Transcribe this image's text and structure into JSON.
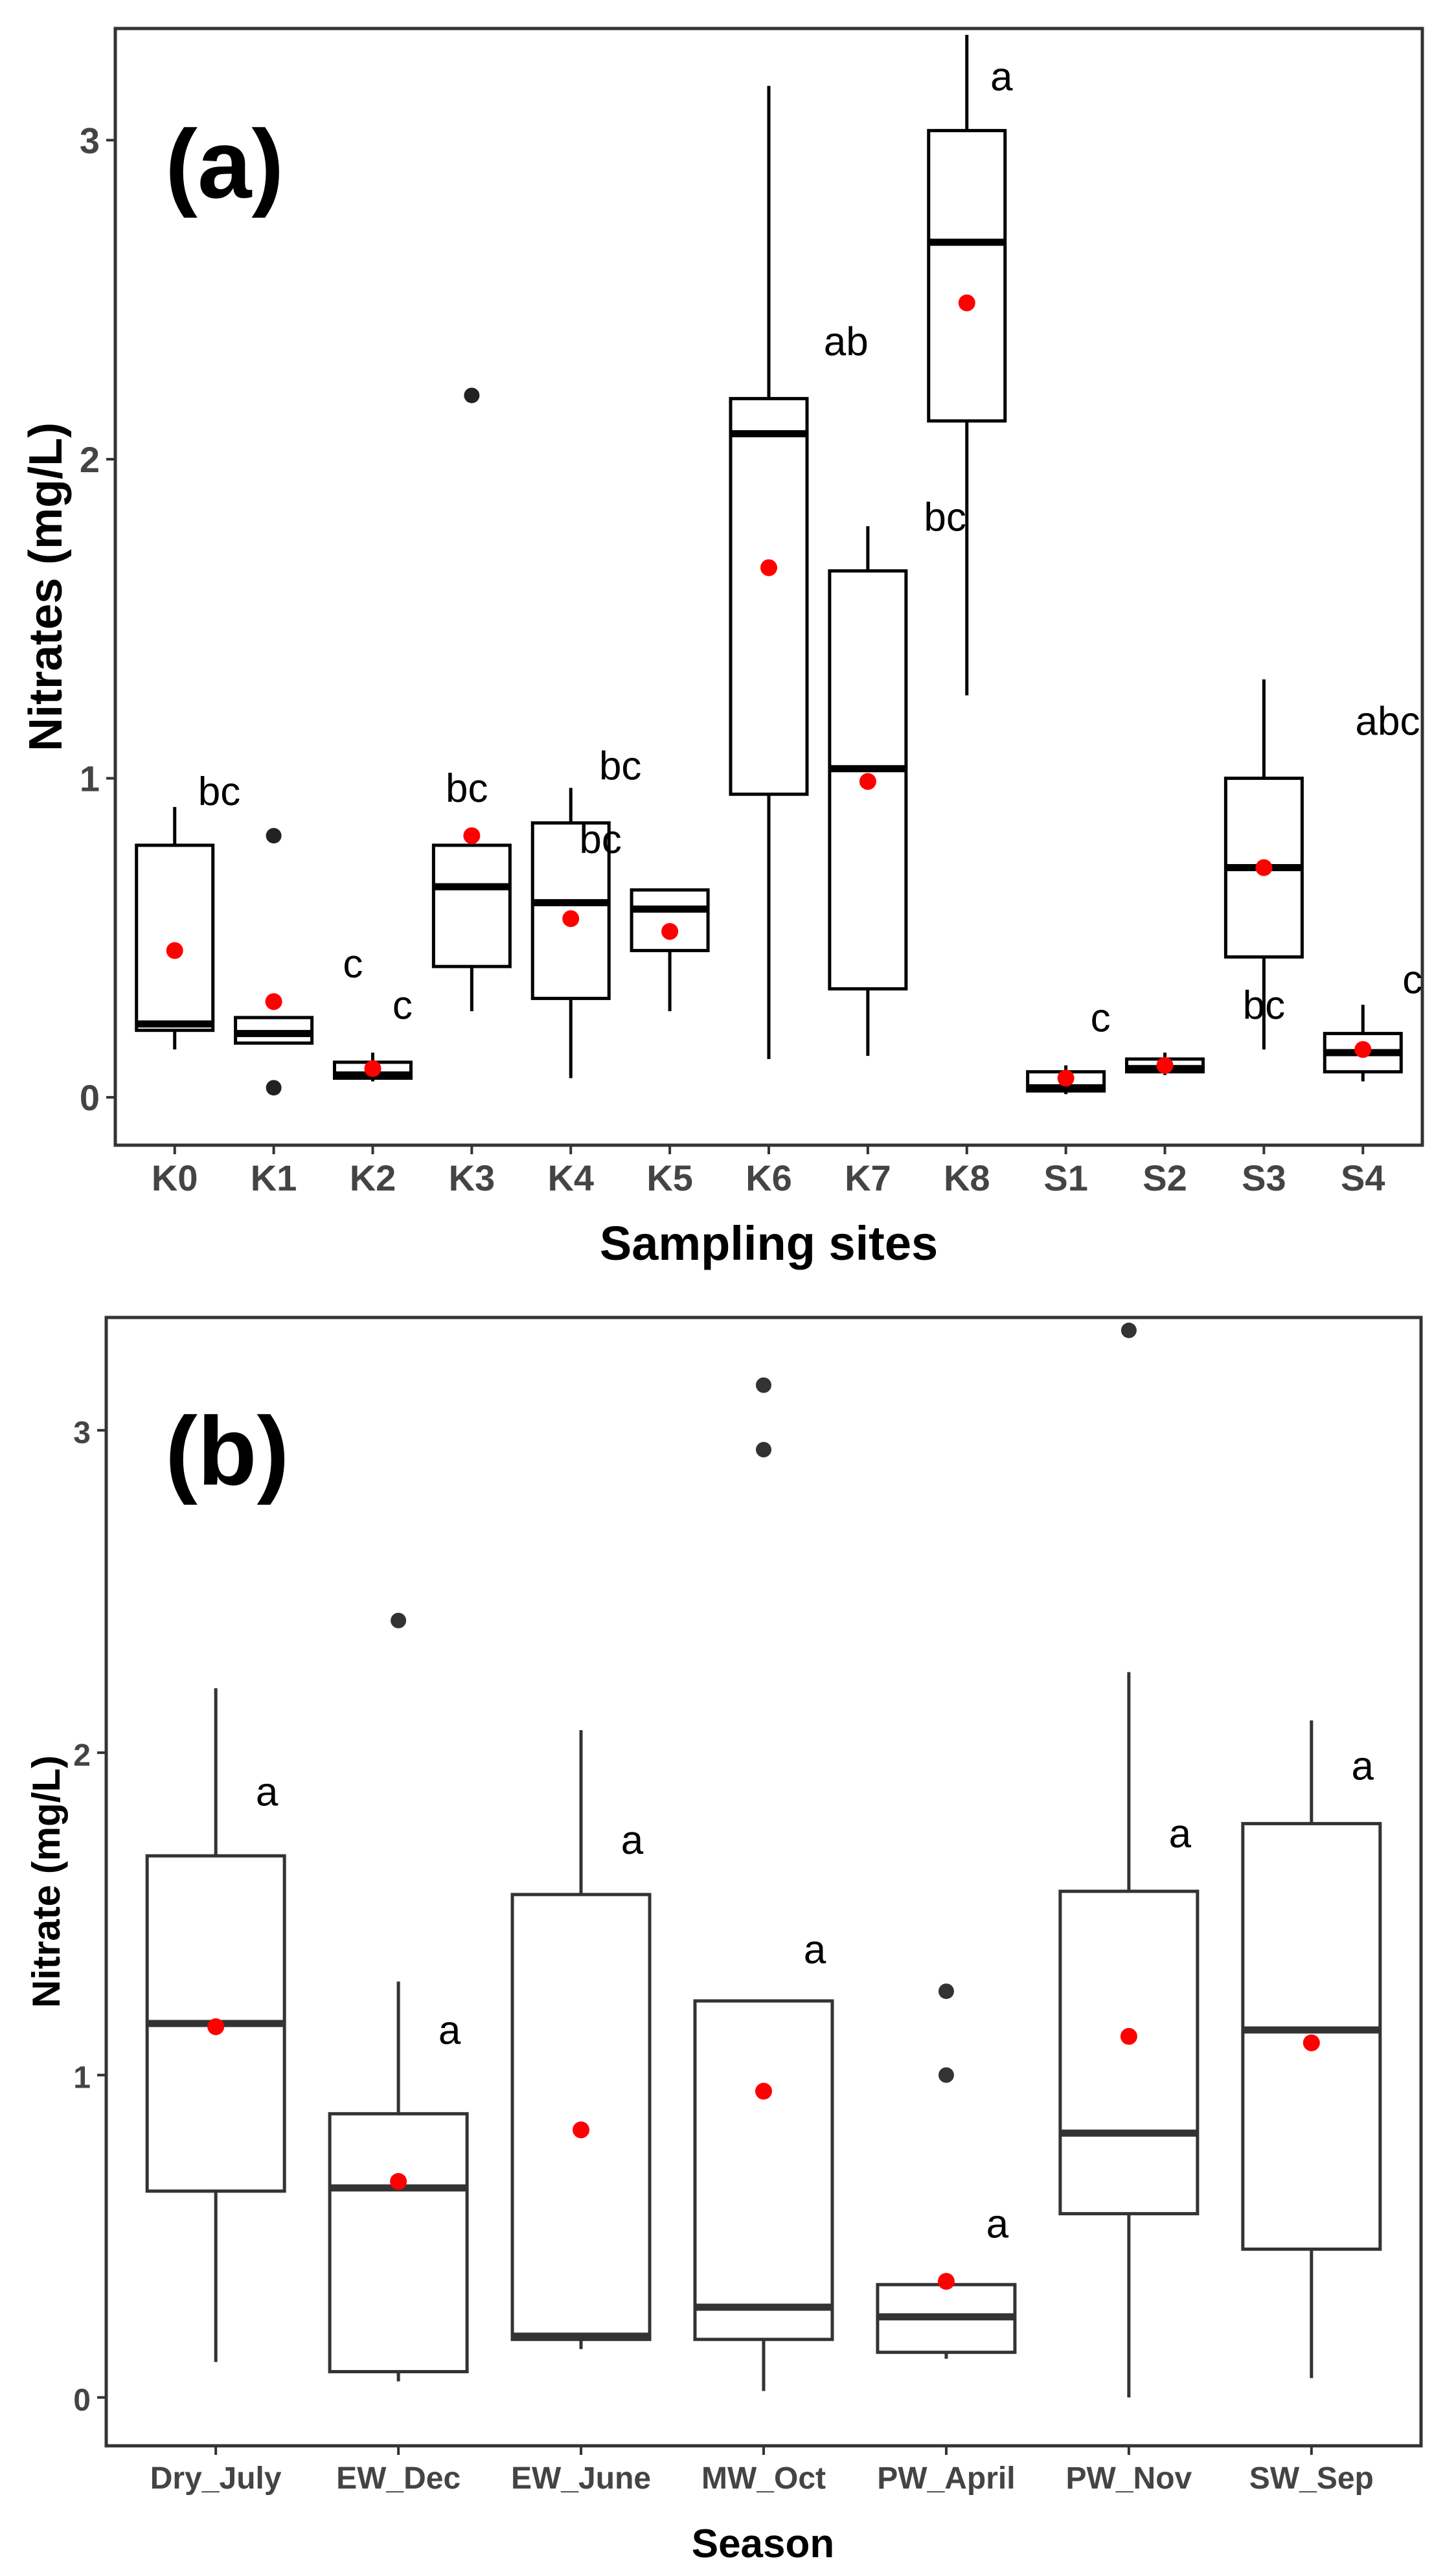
{
  "chart_data": [
    {
      "type": "box",
      "panel_label": "(a)",
      "xlabel": "Sampling sites",
      "ylabel": "Nitrates (mg/L)",
      "ylim": [
        -0.15,
        3.35
      ],
      "yticks": [
        "0",
        "1",
        "2",
        "3"
      ],
      "ytick_values": [
        0,
        1,
        2,
        3
      ],
      "colors": {
        "box": "#000000",
        "mean": "#ff0000",
        "outlier": "#222222"
      },
      "categories": [
        "K0",
        "K1",
        "K2",
        "K3",
        "K4",
        "K5",
        "K6",
        "K7",
        "K8",
        "S1",
        "S2",
        "S3",
        "S4"
      ],
      "boxes": [
        {
          "q1": 0.21,
          "median": 0.23,
          "q3": 0.79,
          "whisker_low": 0.15,
          "whisker_high": 0.91,
          "mean": 0.46,
          "outliers": [],
          "letter": "bc",
          "letter_pos": [
            0.45,
            0.96
          ]
        },
        {
          "q1": 0.17,
          "median": 0.2,
          "q3": 0.25,
          "whisker_low": 0.17,
          "whisker_high": 0.25,
          "mean": 0.3,
          "outliers": [
            0.82,
            0.03
          ],
          "letter": "c",
          "letter_pos": [
            0.8,
            0.42
          ]
        },
        {
          "q1": 0.06,
          "median": 0.07,
          "q3": 0.11,
          "whisker_low": 0.05,
          "whisker_high": 0.14,
          "mean": 0.09,
          "outliers": [],
          "letter": "c",
          "letter_pos": [
            0.3,
            0.29
          ]
        },
        {
          "q1": 0.41,
          "median": 0.66,
          "q3": 0.79,
          "whisker_low": 0.27,
          "whisker_high": 0.79,
          "mean": 0.82,
          "outliers": [
            2.2
          ],
          "letter": "bc",
          "letter_pos": [
            -0.05,
            0.97
          ]
        },
        {
          "q1": 0.31,
          "median": 0.61,
          "q3": 0.86,
          "whisker_low": 0.06,
          "whisker_high": 0.97,
          "mean": 0.56,
          "outliers": [],
          "letter": "bc",
          "letter_pos": [
            0.5,
            1.04
          ]
        },
        {
          "q1": 0.46,
          "median": 0.59,
          "q3": 0.65,
          "whisker_low": 0.27,
          "whisker_high": 0.65,
          "mean": 0.52,
          "outliers": [],
          "letter": "bc",
          "letter_pos": [
            -0.7,
            0.81
          ]
        },
        {
          "q1": 0.95,
          "median": 2.08,
          "q3": 2.19,
          "whisker_low": 0.12,
          "whisker_high": 3.17,
          "mean": 1.66,
          "outliers": [],
          "letter": "ab",
          "letter_pos": [
            0.78,
            2.37
          ]
        },
        {
          "q1": 0.34,
          "median": 1.03,
          "q3": 1.65,
          "whisker_low": 0.13,
          "whisker_high": 1.79,
          "mean": 0.99,
          "outliers": [],
          "letter": "bc",
          "letter_pos": [
            0.78,
            1.82
          ]
        },
        {
          "q1": 2.12,
          "median": 2.68,
          "q3": 3.03,
          "whisker_low": 1.26,
          "whisker_high": 3.33,
          "mean": 2.49,
          "outliers": [],
          "letter": "a",
          "letter_pos": [
            0.35,
            3.2
          ]
        },
        {
          "q1": 0.02,
          "median": 0.03,
          "q3": 0.08,
          "whisker_low": 0.01,
          "whisker_high": 0.1,
          "mean": 0.06,
          "outliers": [],
          "letter": "c",
          "letter_pos": [
            0.35,
            0.25
          ]
        },
        {
          "q1": 0.08,
          "median": 0.09,
          "q3": 0.12,
          "whisker_low": 0.07,
          "whisker_high": 0.14,
          "mean": 0.1,
          "outliers": [],
          "letter": "bc",
          "letter_pos": [
            1.0,
            0.29
          ]
        },
        {
          "q1": 0.44,
          "median": 0.72,
          "q3": 1.0,
          "whisker_low": 0.15,
          "whisker_high": 1.31,
          "mean": 0.72,
          "outliers": [],
          "letter": "abc",
          "letter_pos": [
            1.25,
            1.18
          ]
        },
        {
          "q1": 0.08,
          "median": 0.14,
          "q3": 0.2,
          "whisker_low": 0.05,
          "whisker_high": 0.29,
          "mean": 0.15,
          "outliers": [],
          "letter": "c",
          "letter_pos": [
            0.5,
            0.37
          ]
        }
      ]
    },
    {
      "type": "box",
      "panel_label": "(b)",
      "xlabel": "Season",
      "ylabel": "Nitrate (mg/L)",
      "ylim": [
        -0.15,
        3.35
      ],
      "yticks": [
        "0",
        "1",
        "2",
        "3"
      ],
      "ytick_values": [
        0,
        1,
        2,
        3
      ],
      "colors": {
        "box": "#333333",
        "mean": "#ff0000",
        "outlier": "#333333"
      },
      "categories": [
        "Dry_July",
        "EW_Dec",
        "EW_June",
        "MW_Oct",
        "PW_April",
        "PW_Nov",
        "SW_Sep"
      ],
      "boxes": [
        {
          "q1": 0.64,
          "median": 1.16,
          "q3": 1.68,
          "whisker_low": 0.11,
          "whisker_high": 2.2,
          "mean": 1.15,
          "outliers": [],
          "letter": "a",
          "letter_pos": [
            0.28,
            1.88
          ]
        },
        {
          "q1": 0.08,
          "median": 0.65,
          "q3": 0.88,
          "whisker_low": 0.05,
          "whisker_high": 1.29,
          "mean": 0.67,
          "outliers": [
            2.41
          ],
          "letter": "a",
          "letter_pos": [
            0.28,
            1.14
          ]
        },
        {
          "q1": 0.18,
          "median": 0.19,
          "q3": 1.56,
          "whisker_low": 0.15,
          "whisker_high": 2.07,
          "mean": 0.83,
          "outliers": [],
          "letter": "a",
          "letter_pos": [
            0.28,
            1.73
          ]
        },
        {
          "q1": 0.18,
          "median": 0.28,
          "q3": 1.23,
          "whisker_low": 0.02,
          "whisker_high": 1.23,
          "mean": 0.95,
          "outliers": [
            3.14,
            2.94
          ],
          "letter": "a",
          "letter_pos": [
            0.28,
            1.39
          ]
        },
        {
          "q1": 0.14,
          "median": 0.25,
          "q3": 0.35,
          "whisker_low": 0.12,
          "whisker_high": 0.35,
          "mean": 0.36,
          "outliers": [
            1.26,
            1.0
          ],
          "letter": "a",
          "letter_pos": [
            0.28,
            0.54
          ]
        },
        {
          "q1": 0.57,
          "median": 0.82,
          "q3": 1.57,
          "whisker_low": 0.0,
          "whisker_high": 2.25,
          "mean": 1.12,
          "outliers": [
            3.31
          ],
          "letter": "a",
          "letter_pos": [
            0.28,
            1.75
          ]
        },
        {
          "q1": 0.46,
          "median": 1.14,
          "q3": 1.78,
          "whisker_low": 0.06,
          "whisker_high": 2.1,
          "mean": 1.1,
          "outliers": [],
          "letter": "a",
          "letter_pos": [
            0.28,
            1.96
          ]
        }
      ]
    }
  ]
}
